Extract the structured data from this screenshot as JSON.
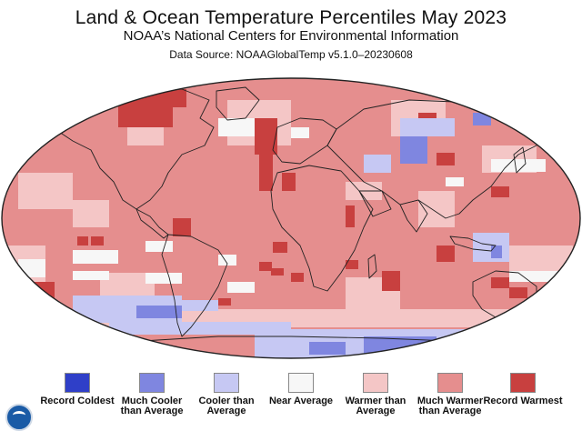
{
  "header": {
    "title": "Land & Ocean Temperature Percentiles May 2023",
    "subtitle": "NOAA’s National Centers for Environmental Information",
    "source": "Data Source: NOAAGlobalTemp v5.1.0–20230608"
  },
  "colors": {
    "record_coldest": "#2f3fc8",
    "much_cooler": "#7f86e0",
    "cooler": "#c6c8f3",
    "near": "#f7f7f7",
    "warmer": "#f4c6c6",
    "much_warmer": "#e58e8e",
    "record_warmest": "#c8403f",
    "no_data": "#ffffff",
    "outline": "#222222"
  },
  "legend": [
    {
      "label": "Record Coldest",
      "color": "#2f3fc8"
    },
    {
      "label": "Much Cooler than Average",
      "color": "#7f86e0"
    },
    {
      "label": "Cooler than Average",
      "color": "#c6c8f3"
    },
    {
      "label": "Near Average",
      "color": "#f7f7f7"
    },
    {
      "label": "Warmer than Average",
      "color": "#f4c6c6"
    },
    {
      "label": "Much Warmer than Average",
      "color": "#e58e8e"
    },
    {
      "label": "Record Warmest",
      "color": "#c8403f"
    }
  ],
  "logo": {
    "icon": "noaa-logo-icon"
  }
}
